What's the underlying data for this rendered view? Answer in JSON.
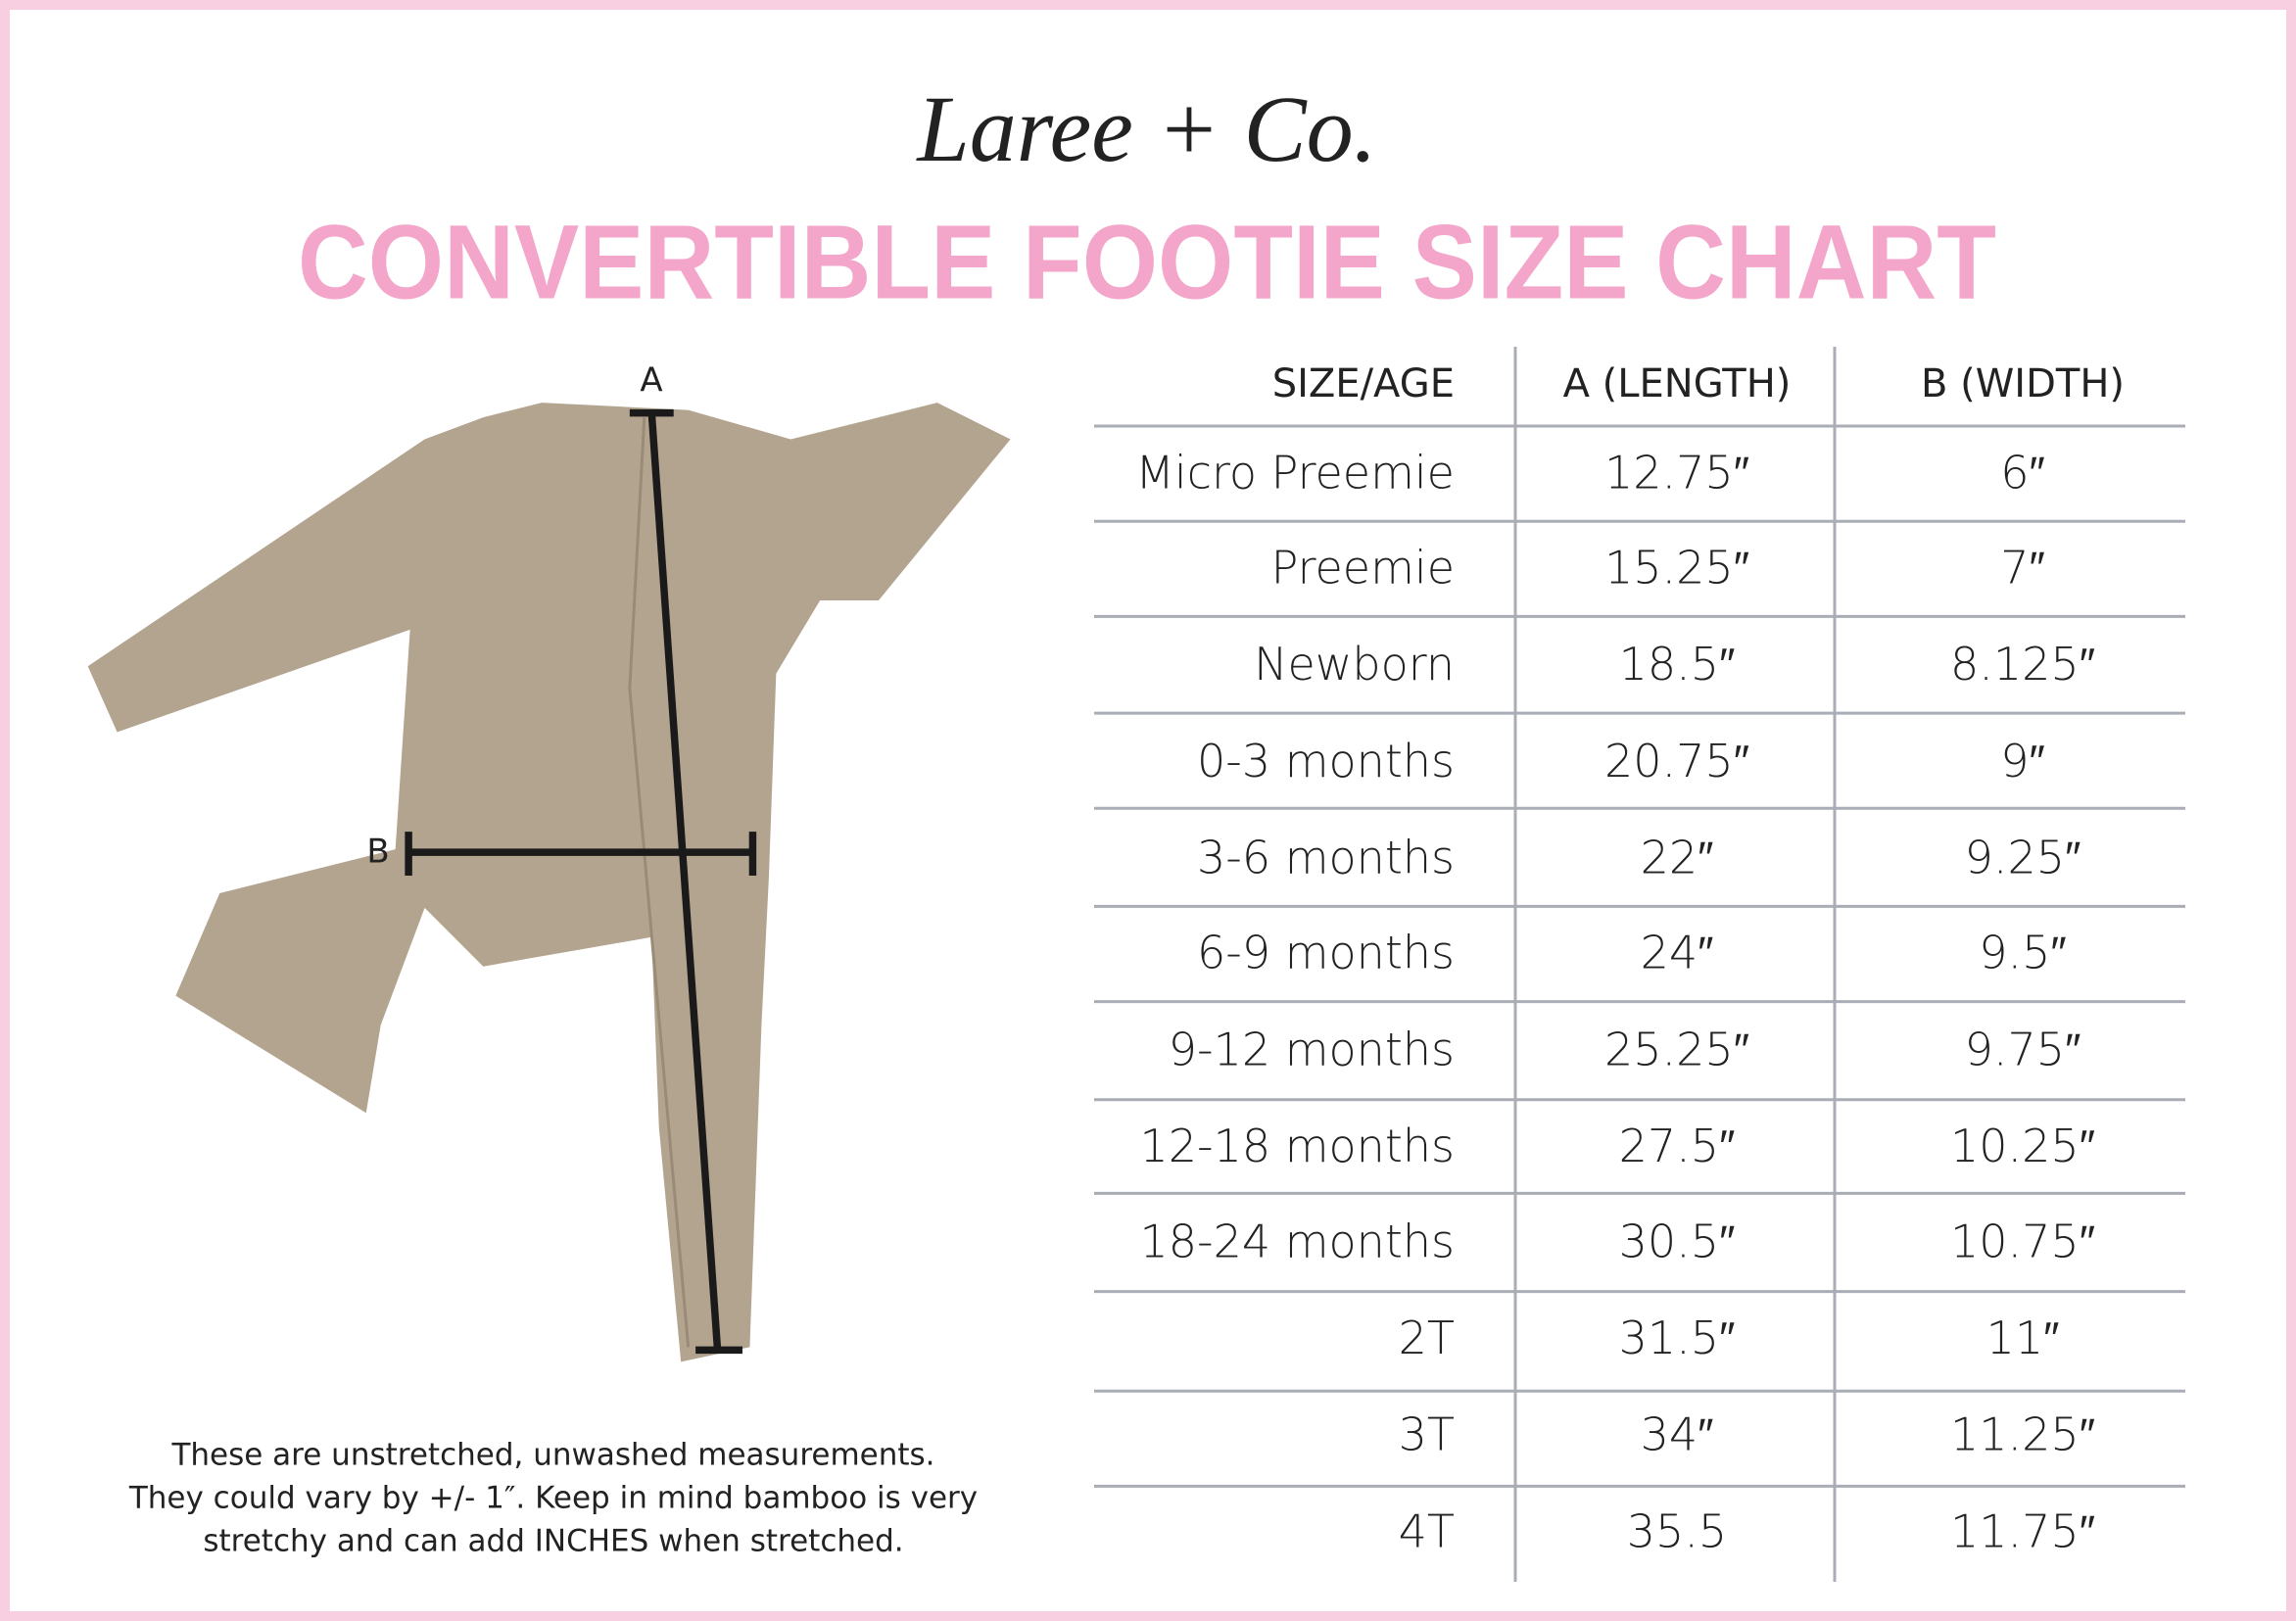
{
  "brand": "Laree + Co.",
  "title": "CONVERTIBLE FOOTIE SIZE CHART",
  "diagram": {
    "label_a": "A",
    "label_b": "B"
  },
  "table": {
    "headers": [
      "SIZE/AGE",
      "A (LENGTH)",
      "B (WIDTH)"
    ],
    "rows": [
      [
        "Micro Preemie",
        "12.75″",
        "6″"
      ],
      [
        "Preemie",
        "15.25″",
        "7″"
      ],
      [
        "Newborn",
        "18.5″",
        "8.125″"
      ],
      [
        "0-3 months",
        "20.75″",
        "9″"
      ],
      [
        "3-6 months",
        "22″",
        "9.25″"
      ],
      [
        "6-9 months",
        "24″",
        "9.5″"
      ],
      [
        "9-12 months",
        "25.25″",
        "9.75″"
      ],
      [
        "12-18 months",
        "27.5″",
        "10.25″"
      ],
      [
        "18-24 months",
        "30.5″",
        "10.75″"
      ],
      [
        "2T",
        "31.5″",
        "11″"
      ],
      [
        "3T",
        "34″",
        "11.25″"
      ],
      [
        "4T",
        "35.5",
        "11.75″"
      ]
    ]
  },
  "note": [
    "These are unstretched, unwashed measurements.",
    "They could vary by +/- 1″. Keep in mind bamboo is very",
    "stretchy and can add INCHES when stretched."
  ]
}
